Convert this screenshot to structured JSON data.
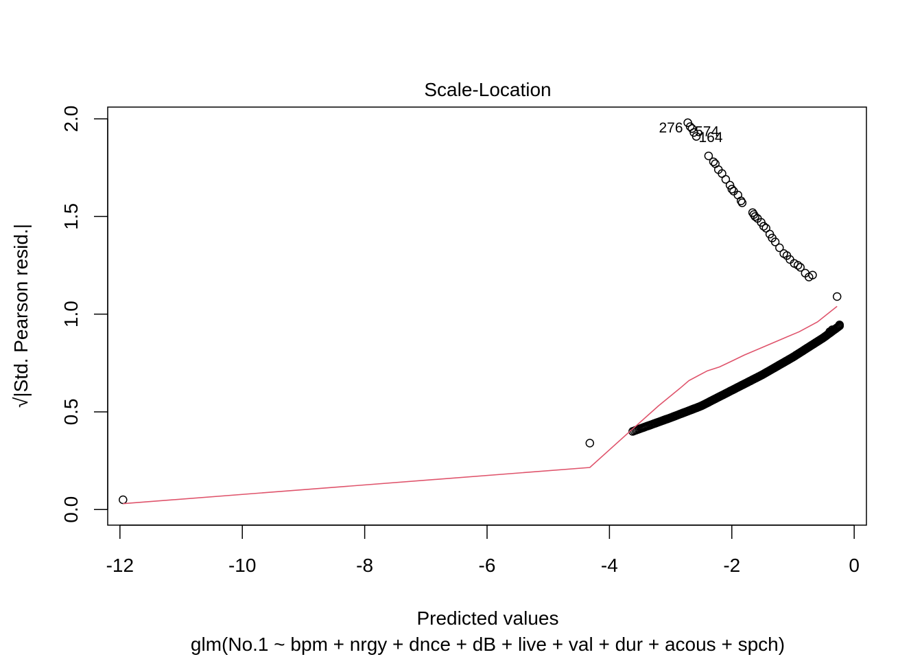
{
  "chart_data": {
    "type": "scatter",
    "title": "Scale-Location",
    "xlabel": "Predicted values",
    "subtitle": "glm(No.1 ~ bpm + nrgy + dnce + dB + live + val + dur + acous + spch)",
    "ylabel": "√|Std. Pearson resid.|",
    "xlim": [
      -12.2,
      0.2
    ],
    "ylim": [
      -0.08,
      2.06
    ],
    "x_ticks": [
      -12,
      -10,
      -8,
      -6,
      -4,
      -2,
      0
    ],
    "y_ticks": [
      0.0,
      0.5,
      1.0,
      1.5,
      2.0
    ],
    "x_tick_labels": [
      "-12",
      "-10",
      "-8",
      "-6",
      "-4",
      "-2",
      "0"
    ],
    "y_tick_labels": [
      "0.0",
      "0.5",
      "1.0",
      "1.5",
      "2.0"
    ],
    "grid": false,
    "point_color": "#000000",
    "smooth_color": "#DF536B",
    "upper_branch": [
      {
        "x": -2.72,
        "y": 1.98
      },
      {
        "x": -2.68,
        "y": 1.96
      },
      {
        "x": -2.65,
        "y": 1.95
      },
      {
        "x": -2.62,
        "y": 1.93
      },
      {
        "x": -2.58,
        "y": 1.91
      },
      {
        "x": -2.38,
        "y": 1.81
      },
      {
        "x": -2.3,
        "y": 1.78
      },
      {
        "x": -2.27,
        "y": 1.77
      },
      {
        "x": -2.22,
        "y": 1.74
      },
      {
        "x": -2.16,
        "y": 1.72
      },
      {
        "x": -2.1,
        "y": 1.69
      },
      {
        "x": -2.03,
        "y": 1.66
      },
      {
        "x": -2.0,
        "y": 1.64
      },
      {
        "x": -1.97,
        "y": 1.63
      },
      {
        "x": -1.9,
        "y": 1.61
      },
      {
        "x": -1.85,
        "y": 1.58
      },
      {
        "x": -1.83,
        "y": 1.57
      },
      {
        "x": -1.66,
        "y": 1.52
      },
      {
        "x": -1.64,
        "y": 1.51
      },
      {
        "x": -1.62,
        "y": 1.5
      },
      {
        "x": -1.58,
        "y": 1.49
      },
      {
        "x": -1.52,
        "y": 1.47
      },
      {
        "x": -1.48,
        "y": 1.45
      },
      {
        "x": -1.44,
        "y": 1.44
      },
      {
        "x": -1.38,
        "y": 1.41
      },
      {
        "x": -1.34,
        "y": 1.39
      },
      {
        "x": -1.29,
        "y": 1.37
      },
      {
        "x": -1.22,
        "y": 1.34
      },
      {
        "x": -1.15,
        "y": 1.31
      },
      {
        "x": -1.1,
        "y": 1.3
      },
      {
        "x": -1.05,
        "y": 1.28
      },
      {
        "x": -0.98,
        "y": 1.26
      },
      {
        "x": -0.92,
        "y": 1.25
      },
      {
        "x": -0.88,
        "y": 1.24
      },
      {
        "x": -0.8,
        "y": 1.21
      },
      {
        "x": -0.74,
        "y": 1.19
      },
      {
        "x": -0.68,
        "y": 1.2
      }
    ],
    "lower_branch": {
      "x_from": -3.62,
      "x_to": -0.24,
      "n": 220,
      "curve": [
        [
          -3.62,
          0.4
        ],
        [
          -3.0,
          0.47
        ],
        [
          -2.5,
          0.53
        ],
        [
          -2.0,
          0.61
        ],
        [
          -1.5,
          0.69
        ],
        [
          -1.0,
          0.78
        ],
        [
          -0.5,
          0.88
        ],
        [
          -0.24,
          0.94
        ]
      ]
    },
    "outliers": [
      {
        "x": -11.95,
        "y": 0.05
      },
      {
        "x": -4.32,
        "y": 0.34
      },
      {
        "x": -0.28,
        "y": 1.09
      },
      {
        "x": -0.24,
        "y": 0.945
      },
      {
        "x": -0.36,
        "y": 0.92
      },
      {
        "x": -0.4,
        "y": 0.91
      }
    ],
    "smooth_line": [
      [
        -11.95,
        0.03
      ],
      [
        -4.32,
        0.215
      ],
      [
        -3.7,
        0.39
      ],
      [
        -3.2,
        0.53
      ],
      [
        -2.85,
        0.62
      ],
      [
        -2.7,
        0.66
      ],
      [
        -2.4,
        0.71
      ],
      [
        -2.2,
        0.73
      ],
      [
        -2.0,
        0.76
      ],
      [
        -1.8,
        0.79
      ],
      [
        -1.5,
        0.83
      ],
      [
        -1.2,
        0.87
      ],
      [
        -0.9,
        0.91
      ],
      [
        -0.6,
        0.96
      ],
      [
        -0.28,
        1.04
      ]
    ],
    "annotations": [
      {
        "label": "276",
        "x": -2.72,
        "y": 1.98,
        "anchor": "end"
      },
      {
        "label": "574",
        "x": -2.68,
        "y": 1.96,
        "anchor": "start"
      },
      {
        "label": "164",
        "x": -2.62,
        "y": 1.93,
        "anchor": "start"
      }
    ]
  }
}
